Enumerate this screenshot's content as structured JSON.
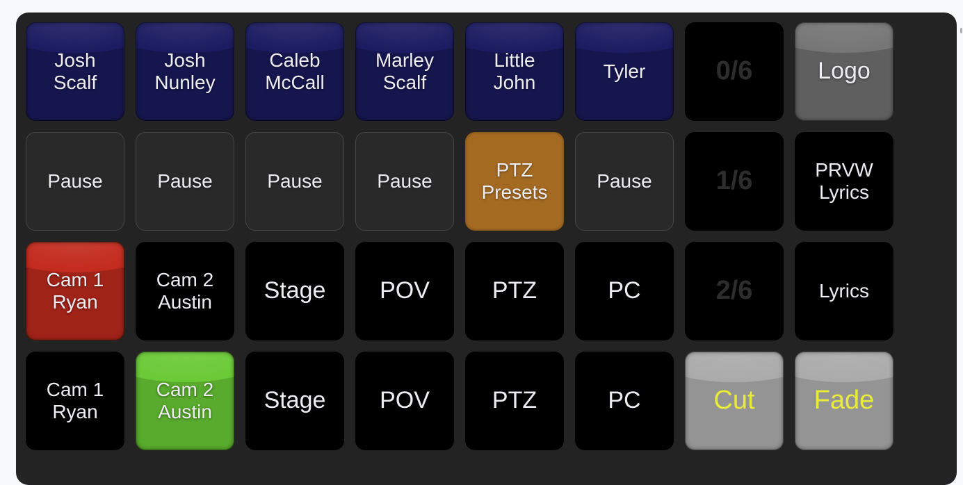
{
  "page": {
    "background": "#f8f9fa",
    "panel_background": "#232323"
  },
  "colors": {
    "navy_button": "#1c1c62",
    "orange_button": "#a46a22",
    "red_program": "#c32b1e",
    "green_preview": "#6bca37",
    "gray_glossy": "#767676",
    "lightgray_glossy": "#ababab",
    "yellow_text": "#e8eb3a",
    "page_indicator_text": "#2d2d2d",
    "pause_border": "#474747"
  },
  "grid": {
    "columns": 8,
    "rows": 4,
    "buttons": [
      {
        "name": "josh-scalf-button",
        "label": "Josh\nScalf",
        "style": "navy",
        "size": "sm"
      },
      {
        "name": "josh-nunley-button",
        "label": "Josh\nNunley",
        "style": "navy",
        "size": "sm"
      },
      {
        "name": "caleb-mccall-button",
        "label": "Caleb\nMcCall",
        "style": "navy",
        "size": "sm"
      },
      {
        "name": "marley-scalf-button",
        "label": "Marley\nScalf",
        "style": "navy",
        "size": "sm"
      },
      {
        "name": "little-john-button",
        "label": "Little\nJohn",
        "style": "navy",
        "size": "sm"
      },
      {
        "name": "tyler-button",
        "label": "Tyler",
        "style": "navy",
        "size": "sm"
      },
      {
        "name": "page-indicator-0-6",
        "label": "0/6",
        "style": "page",
        "size": "xl"
      },
      {
        "name": "logo-button",
        "label": "Logo",
        "style": "logo",
        "size": "lg"
      },
      {
        "name": "pause-button-1",
        "label": "Pause",
        "style": "pause",
        "size": "sm"
      },
      {
        "name": "pause-button-2",
        "label": "Pause",
        "style": "pause",
        "size": "sm"
      },
      {
        "name": "pause-button-3",
        "label": "Pause",
        "style": "pause",
        "size": "sm"
      },
      {
        "name": "pause-button-4",
        "label": "Pause",
        "style": "pause",
        "size": "sm"
      },
      {
        "name": "ptz-presets-button",
        "label": "PTZ\nPresets",
        "style": "orange",
        "size": "sm"
      },
      {
        "name": "pause-button-5",
        "label": "Pause",
        "style": "pause",
        "size": "sm"
      },
      {
        "name": "page-indicator-1-6",
        "label": "1/6",
        "style": "page",
        "size": "xl"
      },
      {
        "name": "prvw-lyrics-button",
        "label": "PRVW\nLyrics",
        "style": "black",
        "size": "sm"
      },
      {
        "name": "program-cam1-ryan-button",
        "label": "Cam 1\nRyan",
        "style": "red",
        "size": "sm"
      },
      {
        "name": "program-cam2-austin-button",
        "label": "Cam 2\nAustin",
        "style": "black",
        "size": "sm"
      },
      {
        "name": "program-stage-button",
        "label": "Stage",
        "style": "black",
        "size": "lg"
      },
      {
        "name": "program-pov-button",
        "label": "POV",
        "style": "black",
        "size": "lg"
      },
      {
        "name": "program-ptz-button",
        "label": "PTZ",
        "style": "black",
        "size": "lg"
      },
      {
        "name": "program-pc-button",
        "label": "PC",
        "style": "black",
        "size": "lg"
      },
      {
        "name": "page-indicator-2-6",
        "label": "2/6",
        "style": "page",
        "size": "xl"
      },
      {
        "name": "lyrics-button",
        "label": "Lyrics",
        "style": "black",
        "size": "sm"
      },
      {
        "name": "preview-cam1-ryan-button",
        "label": "Cam 1\nRyan",
        "style": "black",
        "size": "sm"
      },
      {
        "name": "preview-cam2-austin-button",
        "label": "Cam 2\nAustin",
        "style": "green",
        "size": "sm"
      },
      {
        "name": "preview-stage-button",
        "label": "Stage",
        "style": "black",
        "size": "lg"
      },
      {
        "name": "preview-pov-button",
        "label": "POV",
        "style": "black",
        "size": "lg"
      },
      {
        "name": "preview-ptz-button",
        "label": "PTZ",
        "style": "black",
        "size": "lg"
      },
      {
        "name": "preview-pc-button",
        "label": "PC",
        "style": "black",
        "size": "lg"
      },
      {
        "name": "cut-button",
        "label": "Cut",
        "style": "lightgray",
        "size": "xl"
      },
      {
        "name": "fade-button",
        "label": "Fade",
        "style": "lightgray",
        "size": "xl"
      }
    ]
  }
}
